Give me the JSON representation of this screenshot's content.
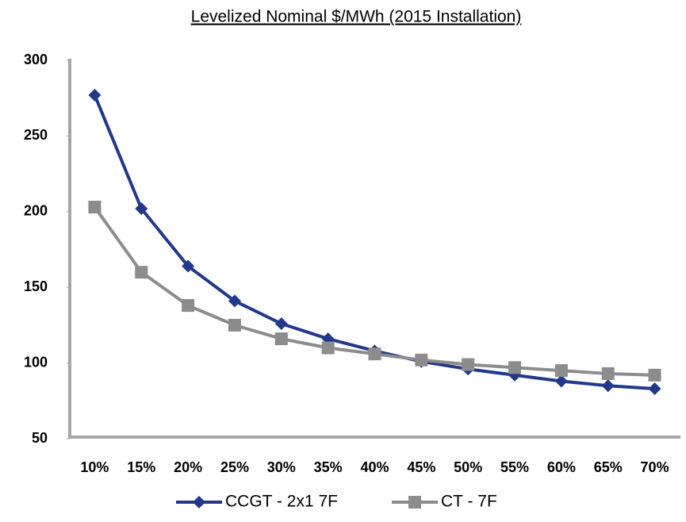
{
  "chart_data": {
    "type": "line",
    "title": "Levelized Nominal $/MWh (2015 Installation)",
    "categories": [
      "10%",
      "15%",
      "20%",
      "25%",
      "30%",
      "35%",
      "40%",
      "45%",
      "50%",
      "55%",
      "60%",
      "65%",
      "70%"
    ],
    "series": [
      {
        "name": "CCGT - 2x1 7F",
        "color": "#22388a",
        "marker": "diamond",
        "values": [
          277,
          202,
          164,
          141,
          126,
          116,
          108,
          101,
          96,
          92,
          88,
          85,
          83
        ]
      },
      {
        "name": "CT - 7F",
        "color": "#8c8c8c",
        "marker": "square",
        "values": [
          203,
          160,
          138,
          125,
          116,
          110,
          106,
          102,
          99,
          97,
          95,
          93,
          92
        ]
      }
    ],
    "ylim": [
      50,
      300
    ],
    "yticks": [
      50,
      100,
      150,
      200,
      250,
      300
    ],
    "grid": false,
    "legend": "bottom"
  }
}
